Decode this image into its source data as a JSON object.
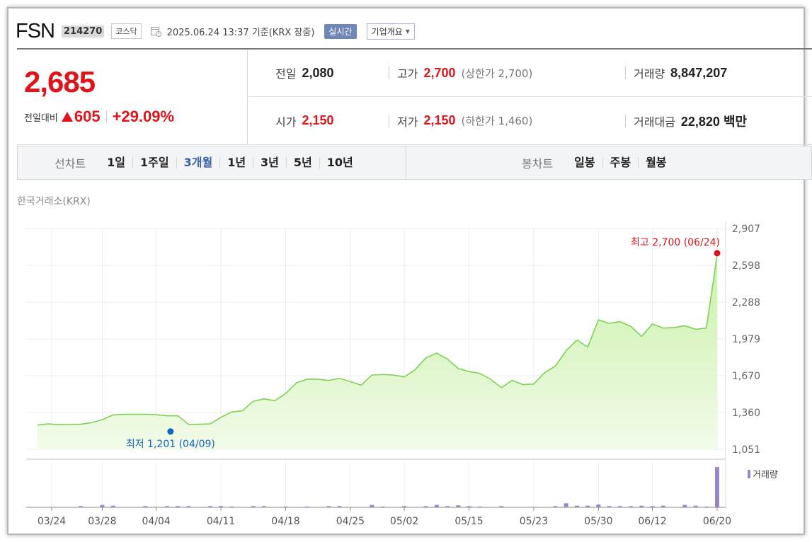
{
  "header": {
    "ticker_name": "FSN",
    "ticker_code": "214270",
    "market": "코스닥",
    "datetime": "2025.06.24 13:37 기준(KRX 장중)",
    "realtime_label": "실시간",
    "company_label": "기업개요"
  },
  "quote": {
    "current_price": "2,685",
    "change_label": "전일대비",
    "change_amount": "605",
    "change_percent": "+29.09%",
    "prev_close_label": "전일",
    "prev_close": "2,080",
    "open_label": "시가",
    "open": "2,150",
    "high_label": "고가",
    "high": "2,700",
    "upper_limit": "(상한가 2,700)",
    "low_label": "저가",
    "low": "2,150",
    "lower_limit": "(하한가 1,460)",
    "volume_label": "거래량",
    "volume": "8,847,207",
    "turnover_label": "거래대금",
    "turnover": "22,820 백만"
  },
  "periods": {
    "line_label": "선차트",
    "line_items": [
      "1일",
      "1주일",
      "3개월",
      "1년",
      "3년",
      "5년",
      "10년"
    ],
    "active": "3개월",
    "candle_label": "봉차트",
    "candle_items": [
      "일봉",
      "주봉",
      "월봉"
    ]
  },
  "exchange_label": "한국거래소(KRX)",
  "colors": {
    "up": "#e0141b",
    "line": "#7dd155",
    "fill_top": "#c9f0a8",
    "fill_bottom": "#f2fbe9",
    "low_marker": "#1565c0",
    "volume_bar": "#9b86c9"
  },
  "chart_data": {
    "type": "area",
    "x_tick_labels": [
      "03/24",
      "03/28",
      "04/04",
      "04/11",
      "04/18",
      "04/25",
      "05/02",
      "05/15",
      "05/23",
      "05/30",
      "06/12",
      "06/20"
    ],
    "y_tick_labels": [
      "2,907",
      "2,598",
      "2,288",
      "1,979",
      "1,670",
      "1,360",
      "1,051"
    ],
    "ylim": [
      1051,
      2907
    ],
    "values": [
      1255,
      1265,
      1258,
      1260,
      1262,
      1275,
      1300,
      1340,
      1345,
      1345,
      1345,
      1342,
      1333,
      1333,
      1260,
      1262,
      1265,
      1320,
      1365,
      1375,
      1455,
      1475,
      1460,
      1520,
      1610,
      1640,
      1640,
      1630,
      1648,
      1620,
      1590,
      1675,
      1680,
      1675,
      1660,
      1720,
      1820,
      1860,
      1810,
      1730,
      1705,
      1690,
      1640,
      1570,
      1630,
      1595,
      1600,
      1695,
      1750,
      1880,
      1970,
      1910,
      2140,
      2110,
      2125,
      2085,
      2000,
      2105,
      2070,
      2075,
      2090,
      2060,
      2070,
      2685
    ],
    "high_annotation": "최고 2,700 (06/24)",
    "low_annotation": "최저 1,201 (04/09)",
    "high_index": 63,
    "high_value": 2700,
    "low_index": 12,
    "low_value": 1201,
    "volume_label": "거래량",
    "volume": [
      0,
      0,
      0,
      0,
      0.03,
      0,
      0.06,
      0.04,
      0,
      0,
      0.03,
      0,
      0.03,
      0.03,
      0.03,
      0,
      0.03,
      0.03,
      0.02,
      0,
      0.03,
      0.03,
      0,
      0.02,
      0,
      0.02,
      0,
      0.03,
      0.03,
      0,
      0,
      0.06,
      0.02,
      0,
      0.03,
      0,
      0.03,
      0.06,
      0.03,
      0.05,
      0.03,
      0.02,
      0,
      0.03,
      0,
      0,
      0,
      0,
      0.03,
      0.1,
      0.04,
      0.04,
      0.07,
      0.03,
      0.03,
      0.03,
      0.04,
      0.03,
      0.04,
      0,
      0.06,
      0.04,
      0.02,
      1.0
    ]
  }
}
